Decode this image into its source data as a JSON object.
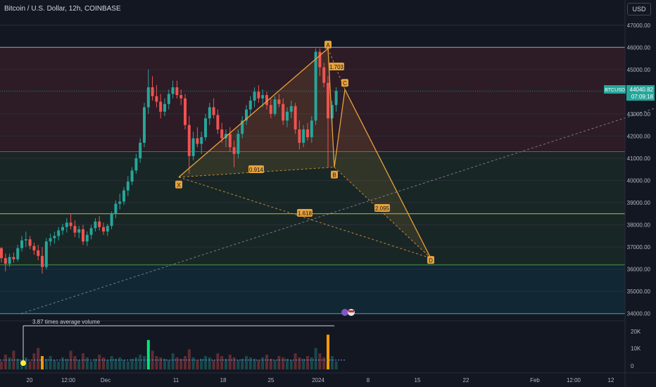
{
  "header": {
    "symbol_line": "Bitcoin / U.S. Dollar, 12h, COINBASE",
    "currency_button": "USD"
  },
  "colors": {
    "background": "#131722",
    "up": "#26a69a",
    "down": "#ef5350",
    "pattern": "#e8a23a",
    "zone_red": "#f23645",
    "zone_green": "#4caf50",
    "zone_teal": "#00bcd4"
  },
  "price_axis": {
    "ticks": [
      "47000.00",
      "46000.00",
      "45000.00",
      "44000.00",
      "43000.00",
      "42000.00",
      "41000.00",
      "40000.00",
      "39000.00",
      "38000.00",
      "37000.00",
      "36000.00",
      "35000.00",
      "34000.00"
    ],
    "last_price": {
      "symbol": "BTCUSD",
      "value": "44040.82",
      "countdown": "07:09:18"
    }
  },
  "time_axis": {
    "ticks": [
      "20",
      "12:00",
      "Dec",
      "11",
      "18",
      "25",
      "2024",
      "8",
      "15",
      "22",
      "Feb",
      "12:00",
      "12"
    ]
  },
  "volume_axis": {
    "ticks": [
      "20K",
      "10K",
      "0"
    ]
  },
  "volume_note": "3.87 times average volume",
  "pattern": {
    "points": [
      {
        "label": "X",
        "price": 40150
      },
      {
        "label": "A",
        "price": 45950
      },
      {
        "label": "B",
        "price": 40600
      },
      {
        "label": "C",
        "price": 44100
      },
      {
        "label": "D",
        "price": 36500
      }
    ],
    "ratios": [
      "1.703",
      "0.914",
      "1.618",
      "2.095"
    ]
  },
  "chart_data": {
    "type": "candlestick",
    "title": "Bitcoin / U.S. Dollar, 12h, COINBASE",
    "ylim": [
      33800,
      47500
    ],
    "levels": [
      46000,
      41300,
      38500,
      36200,
      34000
    ],
    "candles": [
      [
        36950,
        37000,
        36300,
        36500
      ],
      [
        36500,
        36700,
        35900,
        36250
      ],
      [
        36250,
        36700,
        36100,
        36550
      ],
      [
        36550,
        36750,
        36300,
        36450
      ],
      [
        36450,
        37100,
        36350,
        36950
      ],
      [
        36950,
        37500,
        36800,
        37300
      ],
      [
        37300,
        37700,
        37000,
        37350
      ],
      [
        37350,
        37500,
        36900,
        37050
      ],
      [
        37050,
        37200,
        36650,
        36850
      ],
      [
        36850,
        37100,
        36400,
        36600
      ],
      [
        36600,
        37000,
        35800,
        36100
      ],
      [
        36100,
        37400,
        36000,
        37250
      ],
      [
        37250,
        37600,
        37050,
        37400
      ],
      [
        37400,
        37700,
        37150,
        37500
      ],
      [
        37500,
        37900,
        37300,
        37750
      ],
      [
        37750,
        38050,
        37550,
        37900
      ],
      [
        37900,
        38300,
        37650,
        38100
      ],
      [
        38100,
        38500,
        37800,
        37950
      ],
      [
        37950,
        38200,
        37450,
        37650
      ],
      [
        37650,
        37950,
        37400,
        37800
      ],
      [
        37800,
        38000,
        37100,
        37250
      ],
      [
        37250,
        37700,
        37050,
        37550
      ],
      [
        37550,
        38000,
        37350,
        37850
      ],
      [
        37850,
        38300,
        37700,
        38150
      ],
      [
        38150,
        38400,
        37750,
        37900
      ],
      [
        37900,
        38100,
        37550,
        37700
      ],
      [
        37700,
        38050,
        37500,
        37950
      ],
      [
        37950,
        38600,
        37800,
        38500
      ],
      [
        38500,
        39100,
        38300,
        38950
      ],
      [
        38950,
        39400,
        38700,
        39050
      ],
      [
        39050,
        39700,
        38900,
        39550
      ],
      [
        39550,
        40200,
        39300,
        39950
      ],
      [
        39950,
        40600,
        39800,
        40450
      ],
      [
        40450,
        41200,
        40300,
        41000
      ],
      [
        41000,
        41900,
        40800,
        41700
      ],
      [
        41700,
        43500,
        41500,
        43300
      ],
      [
        43300,
        45000,
        43000,
        44200
      ],
      [
        44200,
        44700,
        43600,
        43800
      ],
      [
        43800,
        44300,
        43300,
        43550
      ],
      [
        43550,
        43900,
        42800,
        43100
      ],
      [
        43100,
        43700,
        42900,
        43450
      ],
      [
        43450,
        44100,
        43200,
        43900
      ],
      [
        43900,
        44500,
        43700,
        44200
      ],
      [
        44200,
        44500,
        43700,
        43850
      ],
      [
        43850,
        44100,
        43400,
        43700
      ],
      [
        43700,
        43900,
        42300,
        42500
      ],
      [
        42500,
        42900,
        40300,
        41100
      ],
      [
        41100,
        42200,
        40900,
        41900
      ],
      [
        41900,
        42400,
        41500,
        41650
      ],
      [
        41650,
        42200,
        41200,
        41950
      ],
      [
        41950,
        43000,
        41800,
        42800
      ],
      [
        42800,
        43500,
        42500,
        43300
      ],
      [
        43300,
        43700,
        42800,
        42950
      ],
      [
        42950,
        43200,
        42100,
        42300
      ],
      [
        42300,
        42600,
        41700,
        41900
      ],
      [
        41900,
        42300,
        41500,
        42100
      ],
      [
        42100,
        42400,
        41300,
        41500
      ],
      [
        41500,
        41800,
        40600,
        41200
      ],
      [
        41200,
        42300,
        41000,
        42100
      ],
      [
        42100,
        42900,
        41900,
        42700
      ],
      [
        42700,
        43400,
        42500,
        43200
      ],
      [
        43200,
        43800,
        42900,
        43600
      ],
      [
        43600,
        44200,
        43300,
        44000
      ],
      [
        44000,
        44300,
        43500,
        43700
      ],
      [
        43700,
        44100,
        43300,
        43850
      ],
      [
        43850,
        44000,
        43200,
        43400
      ],
      [
        43400,
        43700,
        42800,
        43000
      ],
      [
        43000,
        43800,
        42900,
        43650
      ],
      [
        43650,
        43900,
        43300,
        43450
      ],
      [
        43450,
        43700,
        42500,
        42700
      ],
      [
        42700,
        43300,
        42400,
        43100
      ],
      [
        43100,
        43600,
        42800,
        43350
      ],
      [
        43350,
        43500,
        42100,
        42300
      ],
      [
        42300,
        42700,
        41400,
        41700
      ],
      [
        41700,
        42500,
        41500,
        42300
      ],
      [
        42300,
        42600,
        41800,
        41950
      ],
      [
        41950,
        42900,
        41700,
        42700
      ],
      [
        42700,
        45950,
        42500,
        45800
      ],
      [
        45800,
        45950,
        44700,
        45100
      ],
      [
        45100,
        45300,
        44200,
        44400
      ],
      [
        44400,
        44700,
        40600,
        42800
      ],
      [
        42800,
        43600,
        42500,
        43400
      ],
      [
        43400,
        44200,
        43100,
        44040
      ]
    ],
    "volumes": [
      6,
      11,
      9,
      14,
      8,
      7,
      9,
      6,
      12,
      16,
      10,
      8,
      10,
      7,
      6,
      9,
      8,
      14,
      10,
      7,
      12,
      9,
      6,
      8,
      11,
      9,
      7,
      10,
      8,
      9,
      7,
      6,
      8,
      9,
      11,
      10,
      22,
      14,
      10,
      9,
      8,
      7,
      12,
      9,
      8,
      10,
      15,
      9,
      7,
      8,
      10,
      9,
      7,
      12,
      10,
      8,
      11,
      9,
      7,
      8,
      10,
      9,
      8,
      7,
      9,
      11,
      8,
      7,
      10,
      9,
      8,
      7,
      12,
      9,
      8,
      10,
      9,
      16,
      12,
      9,
      26,
      10,
      6
    ]
  }
}
